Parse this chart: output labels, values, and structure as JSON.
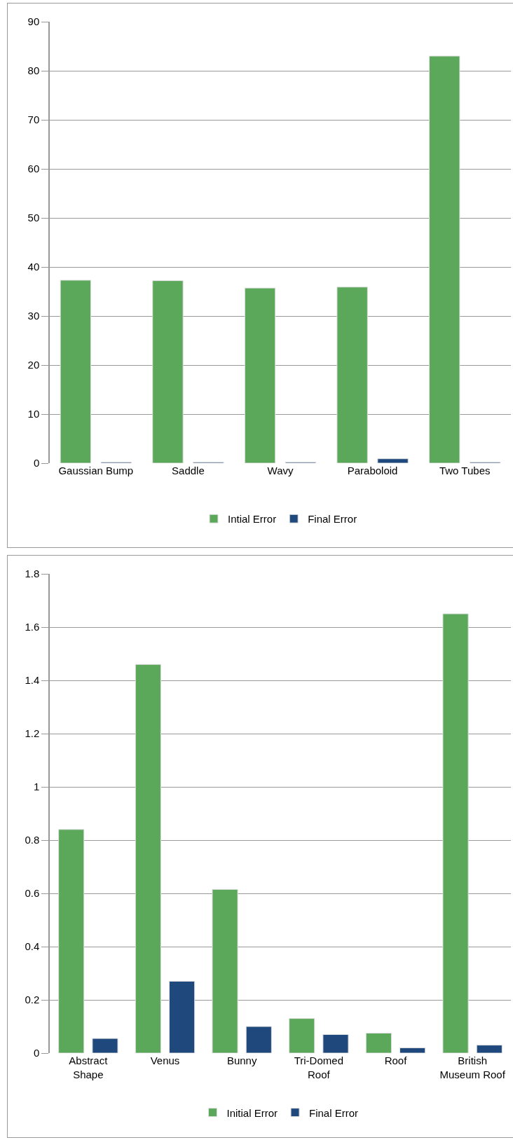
{
  "chart_data": [
    {
      "type": "bar",
      "categories": [
        "Gaussian Bump",
        "Saddle",
        "Wavy",
        "Paraboloid",
        "Two Tubes"
      ],
      "series": [
        {
          "name": "Intial Error",
          "color": "#5ba85a",
          "values": [
            37.3,
            37.2,
            35.7,
            35.9,
            83
          ]
        },
        {
          "name": "Final Error",
          "color": "#1f497d",
          "values": [
            0.2,
            0.2,
            0.2,
            0.9,
            0.2
          ]
        }
      ],
      "ylim": [
        0,
        90
      ],
      "yticks": [
        0,
        10,
        20,
        30,
        40,
        50,
        60,
        70,
        80,
        90
      ],
      "grid": "y",
      "legend": "bottom"
    },
    {
      "type": "bar",
      "categories": [
        "Abstract\nShape",
        "Venus",
        "Bunny",
        "Tri-Domed\nRoof",
        "Roof",
        "British\nMuseum Roof"
      ],
      "series": [
        {
          "name": "Initial Error",
          "color": "#5ba85a",
          "values": [
            0.84,
            1.46,
            0.615,
            0.13,
            0.075,
            1.65
          ]
        },
        {
          "name": "Final Error",
          "color": "#1f497d",
          "values": [
            0.055,
            0.27,
            0.1,
            0.07,
            0.02,
            0.03
          ]
        }
      ],
      "ylim": [
        0,
        1.8
      ],
      "yticks": [
        0,
        0.2,
        0.4,
        0.6,
        0.8,
        1,
        1.2,
        1.4,
        1.6,
        1.8
      ],
      "grid": "y",
      "legend": "bottom"
    }
  ]
}
